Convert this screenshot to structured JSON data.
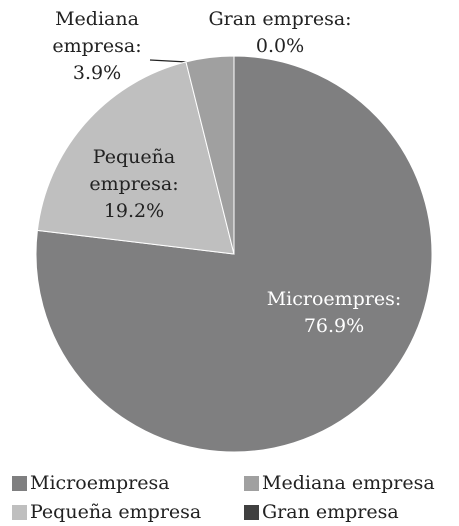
{
  "chart_data": {
    "type": "pie",
    "categories": [
      "Microempresa",
      "Pequeña empresa",
      "Mediana empresa",
      "Gran empresa"
    ],
    "values": [
      76.9,
      19.2,
      3.9,
      0.0
    ],
    "value_labels": [
      "76.9%",
      "19.2%",
      "3.9%",
      "0.0%"
    ],
    "label_names": [
      [
        "Microempres:"
      ],
      [
        "Pequeña",
        "empresa:"
      ],
      [
        "Mediana",
        "empresa:"
      ],
      [
        "Gran empresa:"
      ]
    ],
    "colors": [
      "#7f7f80",
      "#bfbfbf",
      "#a0a0a0",
      "#404040"
    ]
  }
}
